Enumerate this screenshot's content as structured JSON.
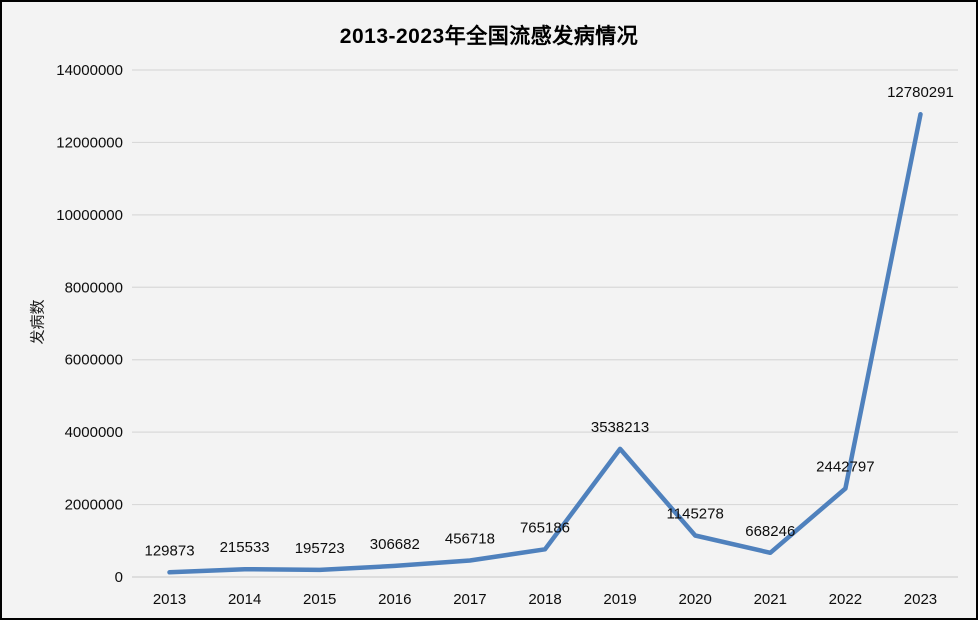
{
  "chart_data": {
    "type": "line",
    "title": "2013-2023年全国流感发病情况",
    "ylabel": "发病数",
    "xlabel": "",
    "categories": [
      "2013",
      "2014",
      "2015",
      "2016",
      "2017",
      "2018",
      "2019",
      "2020",
      "2021",
      "2022",
      "2023"
    ],
    "series": [
      {
        "name": "发病数",
        "values": [
          129873,
          215533,
          195723,
          306682,
          456718,
          765186,
          3538213,
          1145278,
          668246,
          2442797,
          12780291
        ],
        "data_labels": [
          "129873",
          "215533",
          "195723",
          "306682",
          "456718",
          "765186",
          "3538213",
          "1145278",
          "668246",
          "2442797",
          "12780291"
        ]
      }
    ],
    "yticks": [
      "0",
      "2000000",
      "4000000",
      "6000000",
      "8000000",
      "10000000",
      "12000000",
      "14000000"
    ],
    "ylim": [
      0,
      14000000
    ],
    "grid": true,
    "legend_position": "none",
    "colors": {
      "line": "#4F81BD",
      "background": "#f3f3f3",
      "gridline": "#d9d9d9",
      "axis_line": "#d0d0d0",
      "text": "#0d0d0d"
    }
  }
}
